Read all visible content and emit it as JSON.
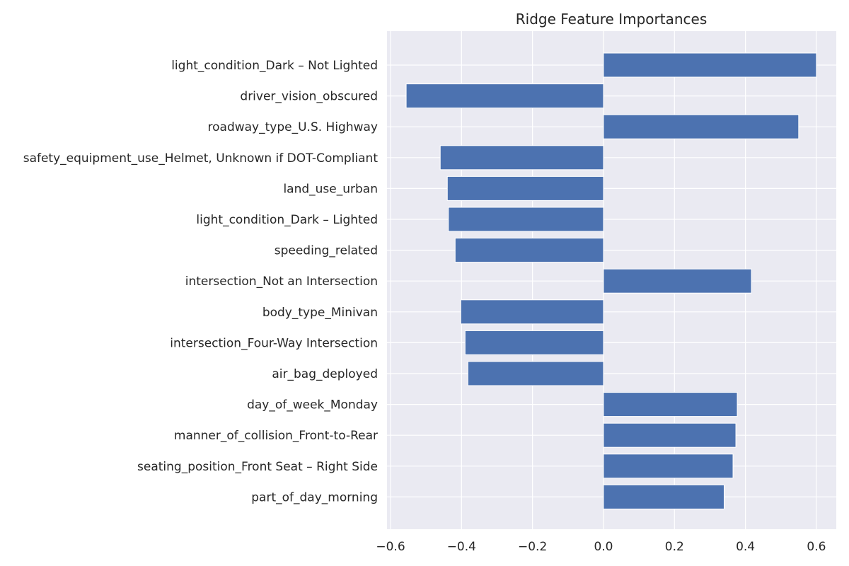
{
  "chart_data": {
    "type": "bar",
    "orientation": "horizontal",
    "title": "Ridge Feature Importances",
    "xlabel": "",
    "ylabel": "",
    "xlim": [
      -0.61,
      0.656
    ],
    "xticks": [
      -0.6,
      -0.4,
      -0.2,
      0.0,
      0.2,
      0.4,
      0.6
    ],
    "xtick_labels": [
      "−0.6",
      "−0.4",
      "−0.2",
      "0.0",
      "0.2",
      "0.4",
      "0.6"
    ],
    "grid": true,
    "legend": "none",
    "bar_color": "#4c72b0",
    "background_color": "#eaeaf2",
    "grid_color": "#ffffff",
    "categories": [
      "light_condition_Dark – Not Lighted",
      "driver_vision_obscured",
      "roadway_type_U.S. Highway",
      "safety_equipment_use_Helmet, Unknown if DOT-Compliant",
      "land_use_urban",
      "light_condition_Dark – Lighted",
      "speeding_related",
      "intersection_Not an Intersection",
      "body_type_Minivan",
      "intersection_Four-Way Intersection",
      "air_bag_deployed",
      "day_of_week_Monday",
      "manner_of_collision_Front-to-Rear",
      "seating_position_Front Seat – Right Side",
      "part_of_day_morning"
    ],
    "values": [
      0.6,
      -0.556,
      0.55,
      -0.46,
      -0.44,
      -0.437,
      -0.418,
      0.417,
      -0.402,
      -0.39,
      -0.382,
      0.377,
      0.373,
      0.365,
      0.34
    ]
  }
}
